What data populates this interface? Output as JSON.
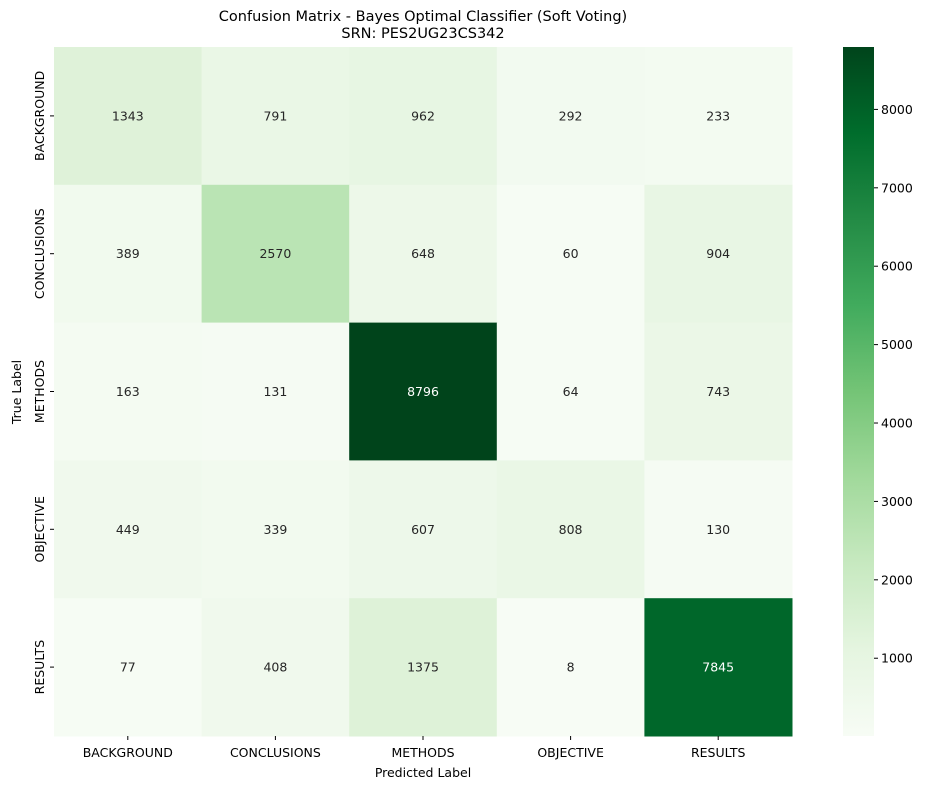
{
  "chart_data": {
    "type": "heatmap",
    "title": "Confusion Matrix - Bayes Optimal Classifier (Soft Voting)",
    "subtitle": "SRN: PES2UG23CS342",
    "xlabel": "Predicted Label",
    "ylabel": "True Label",
    "x_categories": [
      "BACKGROUND",
      "CONCLUSIONS",
      "METHODS",
      "OBJECTIVE",
      "RESULTS"
    ],
    "y_categories": [
      "BACKGROUND",
      "CONCLUSIONS",
      "METHODS",
      "OBJECTIVE",
      "RESULTS"
    ],
    "values": [
      [
        1343,
        791,
        962,
        292,
        233
      ],
      [
        389,
        2570,
        648,
        60,
        904
      ],
      [
        163,
        131,
        8796,
        64,
        743
      ],
      [
        449,
        339,
        607,
        808,
        130
      ],
      [
        77,
        408,
        1375,
        8,
        7845
      ]
    ],
    "colormap": "Greens",
    "colorbar": {
      "min": 8,
      "max": 8796,
      "ticks": [
        1000,
        2000,
        3000,
        4000,
        5000,
        6000,
        7000,
        8000
      ]
    },
    "colors": {
      "low": "#f7fcf5",
      "high": "#00441b",
      "text_dark": "#262626",
      "text_light": "#ffffff"
    }
  }
}
